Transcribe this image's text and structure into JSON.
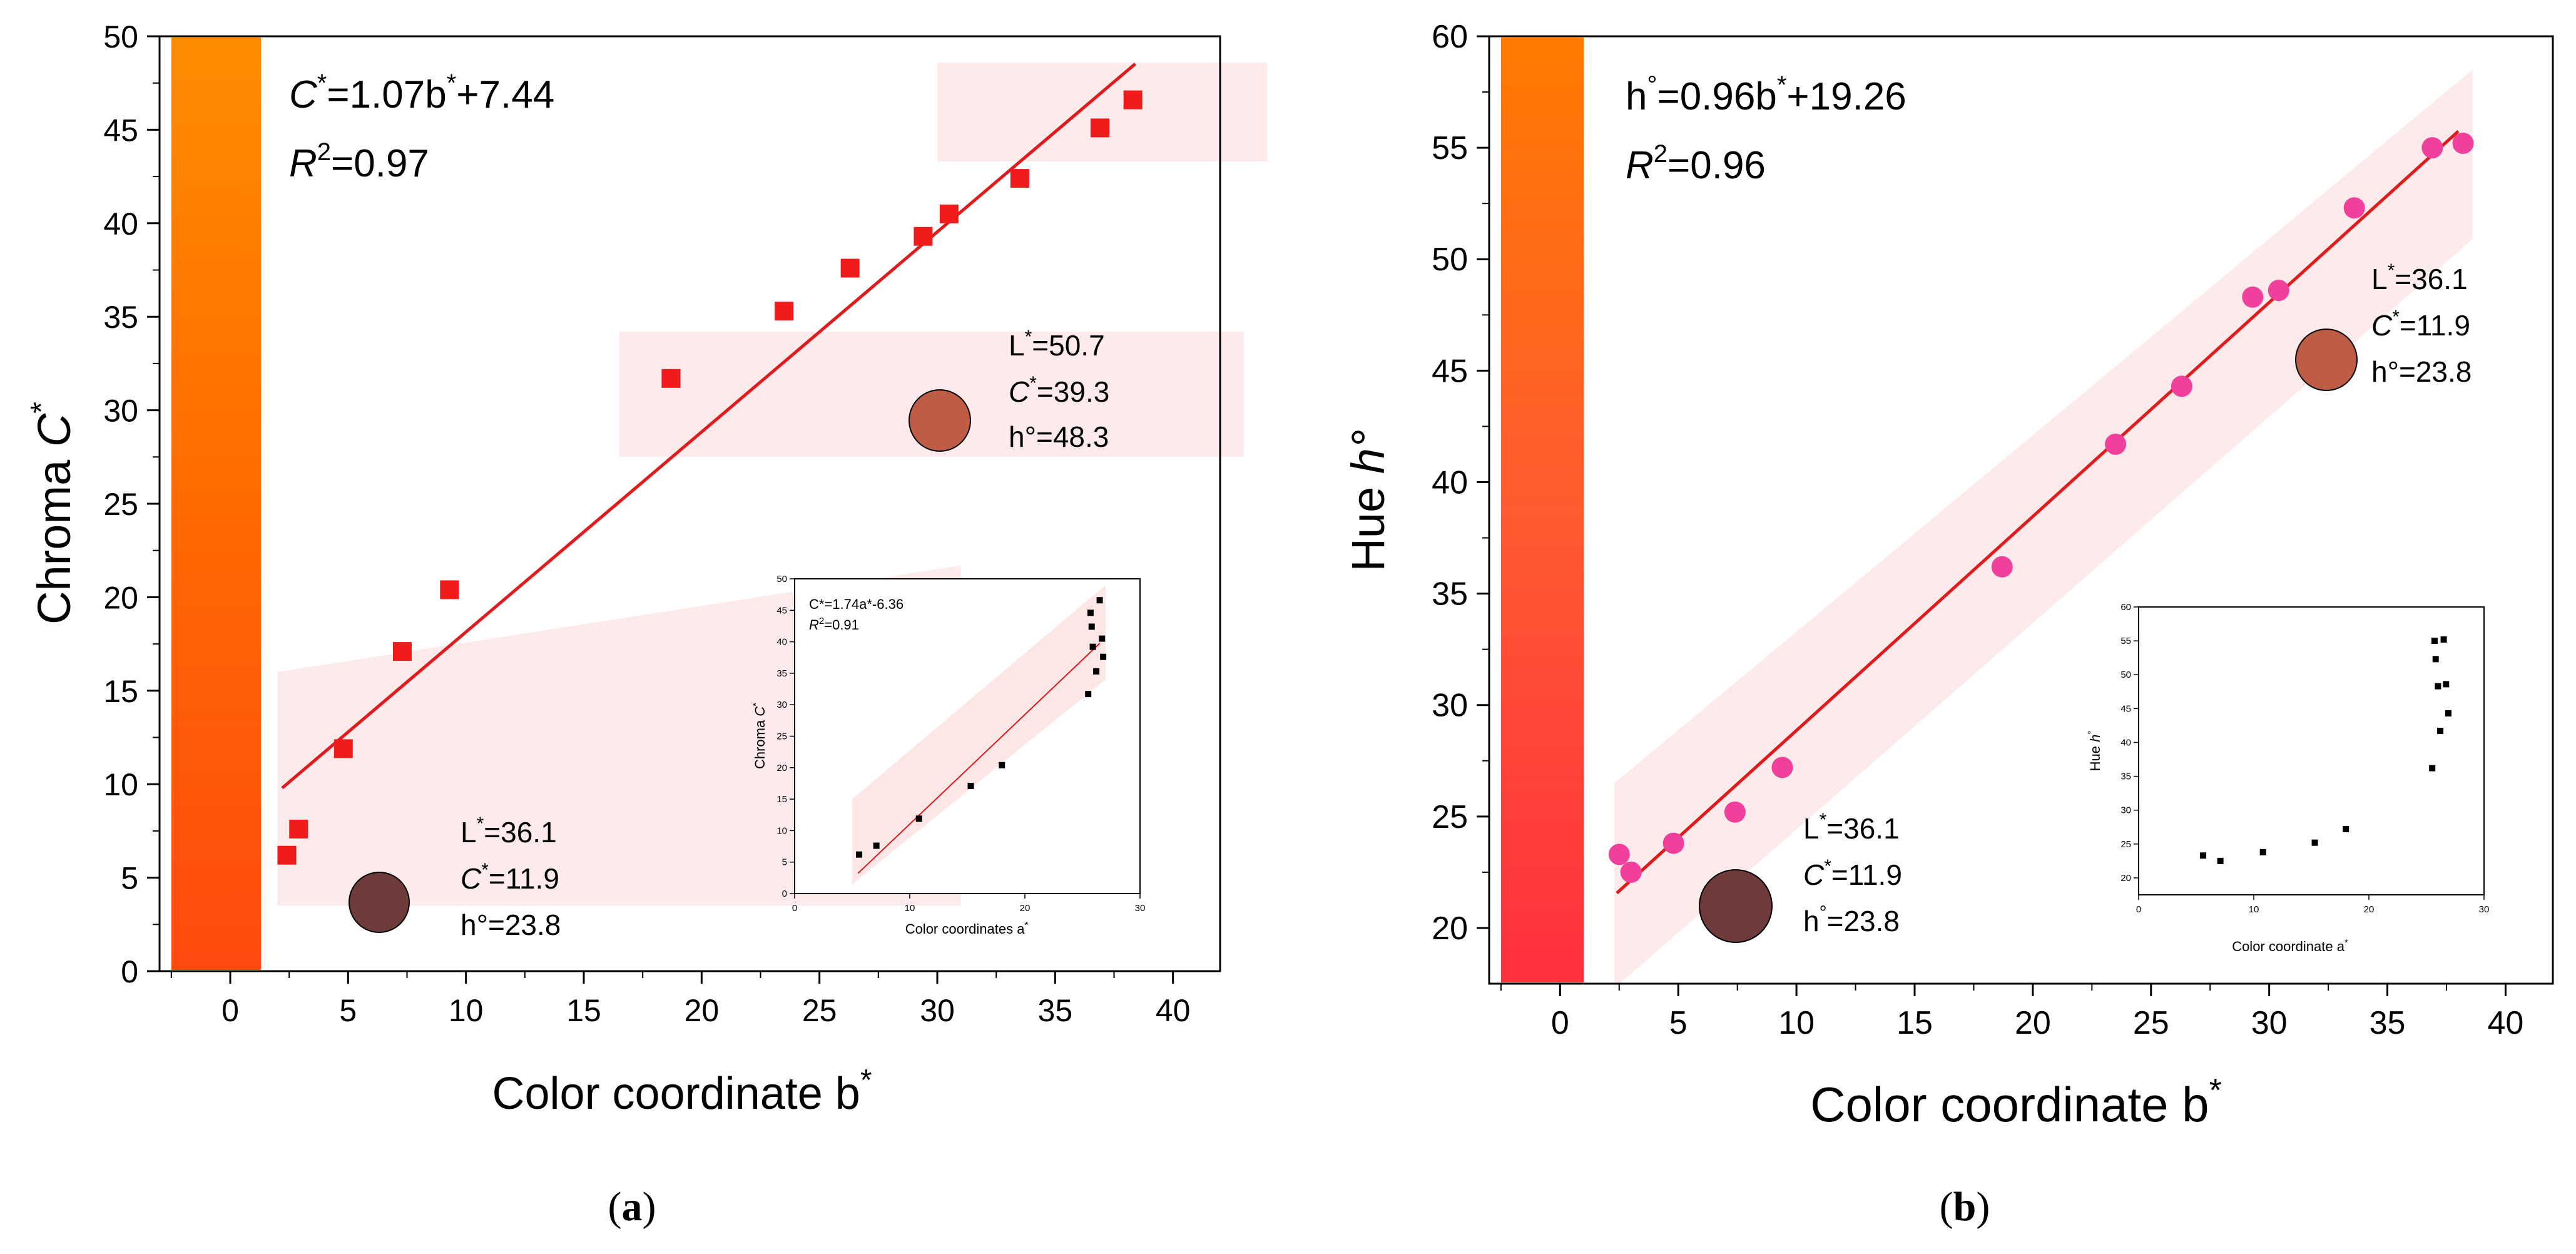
{
  "colors": {
    "band": "#fde6e6",
    "fit_line": "#e31a1c",
    "marker_a": "#f21b1b",
    "marker_b": "#f0409c",
    "inset_marker": "#000000",
    "inset_line": "#e31a1c",
    "swatch_dark": "#6e3a3a",
    "swatch_light": "#bf5c45",
    "gradient_a": [
      "#ff8c00",
      "#ff6a00",
      "#ff4a10"
    ],
    "gradient_b": [
      "#ff7a00",
      "#ff5a30",
      "#ff3040"
    ]
  },
  "chart_data": [
    {
      "id": "a",
      "type": "scatter",
      "panel_label": "a",
      "xlabel": "Color coordinate b",
      "xlabel_sup": "*",
      "ylabel": "Chroma",
      "ylabel_italic": "C",
      "ylabel_sup": "*",
      "xlim": [
        -3,
        42
      ],
      "ylim": [
        0,
        50
      ],
      "xticks": [
        0,
        5,
        10,
        15,
        20,
        25,
        30,
        35,
        40
      ],
      "yticks": [
        0,
        5,
        10,
        15,
        20,
        25,
        30,
        35,
        40,
        45,
        50
      ],
      "tick_labels_x": [
        "0",
        "5",
        "10",
        "15",
        "20",
        "25",
        "30",
        "35",
        "40"
      ],
      "tick_labels_y": [
        "0",
        "5",
        "10",
        "15",
        "20",
        "25",
        "30",
        "35",
        "40",
        "45",
        "50"
      ],
      "gradient_range": [
        -2.5,
        1.3
      ],
      "marker": "square",
      "series": [
        {
          "x": [
            2.4,
            2.9,
            4.8,
            7.3,
            9.3,
            18.7,
            23.5,
            26.3,
            29.4,
            30.5,
            33.5,
            36.9,
            38.3
          ],
          "y": [
            6.2,
            7.6,
            11.9,
            17.1,
            20.4,
            31.7,
            35.3,
            37.6,
            39.3,
            40.5,
            42.4,
            45.1,
            46.6
          ]
        }
      ],
      "fit": {
        "slope": 1.07,
        "intercept": 7.44,
        "x_range": [
          2.2,
          38.4
        ]
      },
      "equation": {
        "lhs_italic": "C",
        "lhs_sup": "*",
        "rest": "=1.07b",
        "rest_sup": "*",
        "tail": "+7.44"
      },
      "r2": {
        "italic": "R",
        "sup": "2",
        "value": "=0.97"
      },
      "bands": [
        {
          "x": [
            2,
            31
          ],
          "y_bottom": [
            3.5,
            3.5
          ],
          "y_top": [
            16,
            21.7
          ]
        },
        {
          "x": [
            16.5,
            43
          ],
          "y_bottom": [
            27.5,
            27.5
          ],
          "y_top": [
            34.2,
            34.2
          ]
        },
        {
          "x": [
            30,
            44
          ],
          "y_bottom": [
            43.3,
            43.3
          ],
          "y_top": [
            48.6,
            48.6
          ]
        }
      ],
      "annotations": [
        {
          "lines": [
            {
              "text": "L",
              "sup": "*",
              "tail": "=36.1"
            },
            {
              "italic": "C",
              "sup": "*",
              "tail": "=11.9"
            },
            {
              "text": "h°=23.8"
            }
          ],
          "swatch": "dark"
        },
        {
          "lines": [
            {
              "text": "L",
              "sup": "*",
              "tail": "=50.7"
            },
            {
              "italic": "C",
              "sup": "*",
              "tail": "=39.3"
            },
            {
              "text": "h°=48.3"
            }
          ],
          "swatch": "light"
        }
      ],
      "inset": {
        "xlabel": "Color coordinates a",
        "xlabel_sup": "*",
        "ylabel": "Chroma",
        "ylabel_italic": "C",
        "ylabel_sup": "*",
        "xlim": [
          0,
          30
        ],
        "ylim": [
          0,
          50
        ],
        "xticks": [
          0,
          10,
          20,
          30
        ],
        "yticks": [
          0,
          5,
          10,
          15,
          20,
          25,
          30,
          35,
          40,
          45,
          50
        ],
        "tick_labels_x": [
          "0",
          "10",
          "20",
          "30"
        ],
        "tick_labels_y": [
          "0",
          "5",
          "10",
          "15",
          "20",
          "25",
          "30",
          "35",
          "40",
          "45",
          "50"
        ],
        "equation": "C*=1.74a*-6.36",
        "r2": "R",
        "r2_sup": "2",
        "r2_value": "=0.91",
        "x": [
          5.6,
          7.1,
          10.8,
          15.3,
          18.0,
          25.5,
          25.7,
          25.8,
          25.9,
          26.2,
          26.5,
          26.7,
          26.8
        ],
        "y": [
          6.2,
          7.6,
          11.9,
          17.1,
          20.4,
          31.7,
          44.6,
          42.4,
          39.2,
          35.3,
          46.6,
          40.5,
          37.6
        ],
        "fit": {
          "slope": 1.74,
          "intercept": -6.36,
          "x_range": [
            5.5,
            26.5
          ]
        },
        "band": {
          "x": [
            5,
            27
          ],
          "y_bottom": [
            1.5,
            34
          ],
          "y_top": [
            15,
            49
          ]
        }
      }
    },
    {
      "id": "b",
      "type": "scatter",
      "panel_label": "b",
      "xlabel": "Color coordinate b",
      "xlabel_sup": "*",
      "ylabel": "Hue",
      "ylabel_italic": "h°",
      "xlim": [
        -3,
        42
      ],
      "ylim": [
        17.5,
        60
      ],
      "xticks": [
        0,
        5,
        10,
        15,
        20,
        25,
        30,
        35,
        40
      ],
      "yticks": [
        20,
        25,
        30,
        35,
        40,
        45,
        50,
        55,
        60
      ],
      "tick_labels_x": [
        "0",
        "5",
        "10",
        "15",
        "20",
        "25",
        "30",
        "35",
        "40"
      ],
      "tick_labels_y": [
        "20",
        "25",
        "30",
        "35",
        "40",
        "45",
        "50",
        "55",
        "60"
      ],
      "gradient_range": [
        -2.5,
        1.0
      ],
      "marker": "circle",
      "series": [
        {
          "x": [
            2.5,
            3.0,
            4.8,
            7.4,
            9.4,
            18.7,
            23.5,
            26.3,
            29.3,
            30.4,
            33.6,
            36.9,
            38.2
          ],
          "y": [
            23.3,
            22.5,
            23.8,
            25.2,
            27.2,
            36.2,
            41.7,
            44.3,
            48.3,
            48.6,
            52.3,
            55.0,
            55.2
          ]
        }
      ],
      "fit": {
        "slope": 0.96,
        "intercept": 19.26,
        "x_range": [
          2.4,
          38.0
        ]
      },
      "equation": {
        "lhs": "h",
        "lhs_sup": "°",
        "rest": "=0.96b",
        "rest_sup": "*",
        "tail": "+19.26"
      },
      "r2": {
        "italic": "R",
        "sup": "2",
        "value": "=0.96"
      },
      "bands": [
        {
          "x": [
            2.3,
            38.6
          ],
          "y_bottom": [
            17.3,
            50.9
          ],
          "y_top": [
            26.5,
            58.5
          ]
        }
      ],
      "annotations": [
        {
          "lines": [
            {
              "text": "L",
              "sup": "*",
              "tail": "=36.1"
            },
            {
              "italic": "C",
              "sup": "*",
              "tail": "=11.9"
            },
            {
              "text": "h",
              "sup": "°",
              "tail": "=23.8"
            }
          ],
          "swatch": "dark"
        },
        {
          "lines": [
            {
              "text": "L",
              "sup": "*",
              "tail": "=36.1"
            },
            {
              "italic": "C",
              "sup": "*",
              "tail": "=11.9"
            },
            {
              "text": "h°=23.8"
            }
          ],
          "swatch": "light"
        }
      ],
      "inset": {
        "xlabel": "Color coordinate a",
        "xlabel_sup": "*",
        "ylabel": "Hue",
        "ylabel_italic": "h",
        "ylabel_sup": "°",
        "xlim": [
          0,
          30
        ],
        "ylim": [
          17.5,
          60
        ],
        "xticks": [
          0,
          10,
          20,
          30
        ],
        "yticks": [
          20,
          25,
          30,
          35,
          40,
          45,
          50,
          55,
          60
        ],
        "tick_labels_x": [
          "0",
          "10",
          "20",
          "30"
        ],
        "tick_labels_y": [
          "20",
          "25",
          "30",
          "35",
          "40",
          "45",
          "50",
          "55",
          "60"
        ],
        "x": [
          5.6,
          7.1,
          10.8,
          15.3,
          18.0,
          25.5,
          25.7,
          25.8,
          26.0,
          26.2,
          26.5,
          26.7,
          26.9
        ],
        "y": [
          23.3,
          22.5,
          23.8,
          25.2,
          27.2,
          36.2,
          55.0,
          52.3,
          48.3,
          41.7,
          55.2,
          48.6,
          44.3
        ]
      }
    }
  ]
}
